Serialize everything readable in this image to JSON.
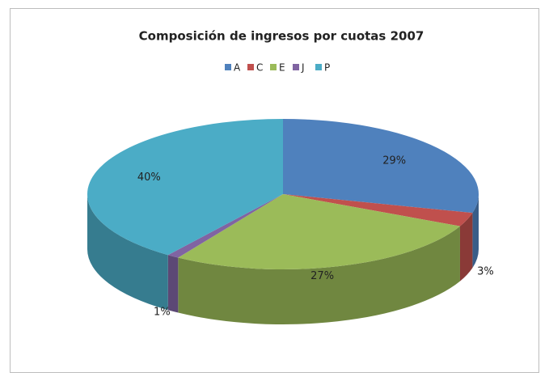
{
  "chart_data": {
    "type": "pie3d",
    "title": "Composición de ingresos por cuotas 2007",
    "categories": [
      "A",
      "C",
      "E",
      "J",
      "P"
    ],
    "values": [
      29,
      3,
      27,
      1,
      40
    ],
    "value_labels": [
      "29%",
      "3%",
      "27%",
      "1%",
      "40%"
    ],
    "colors": [
      "#4f81bd",
      "#c0504d",
      "#9bbb59",
      "#8064a2",
      "#4bacc6"
    ],
    "legend": "top"
  }
}
